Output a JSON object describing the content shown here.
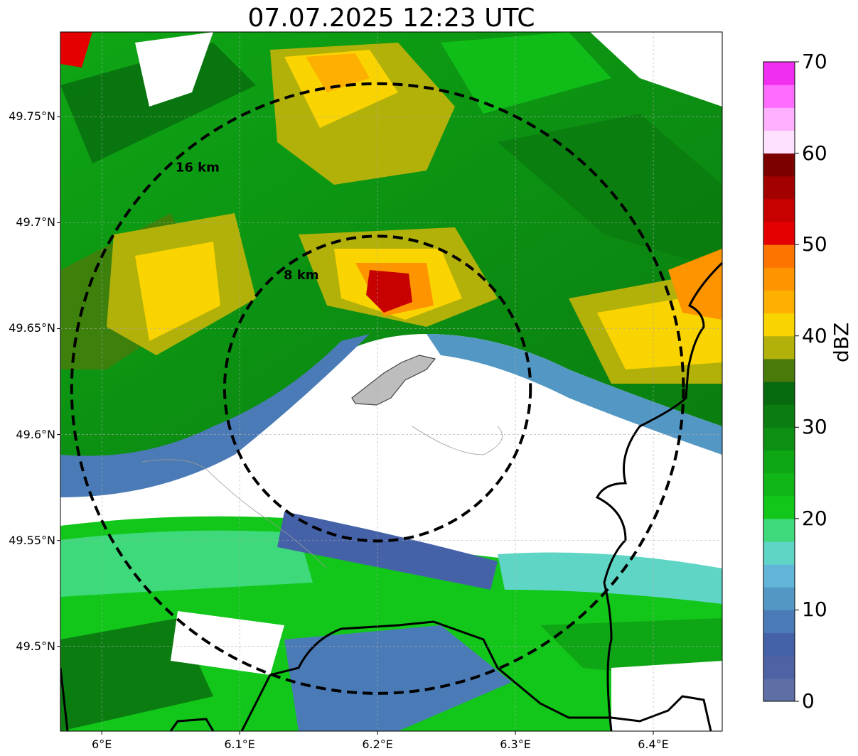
{
  "title": "07.07.2025 12:23 UTC",
  "map": {
    "lon_range": [
      5.97,
      6.45
    ],
    "lat_range": [
      49.46,
      49.79
    ],
    "center": {
      "lon": 6.2,
      "lat": 49.6217
    },
    "lon_ticks": [
      {
        "value": 6.0,
        "label": "6°E"
      },
      {
        "value": 6.1,
        "label": "6.1°E"
      },
      {
        "value": 6.2,
        "label": "6.2°E"
      },
      {
        "value": 6.3,
        "label": "6.3°E"
      },
      {
        "value": 6.4,
        "label": "6.4°E"
      }
    ],
    "lat_ticks": [
      {
        "value": 49.75,
        "label": "49.75°N"
      },
      {
        "value": 49.7,
        "label": "49.7°N"
      },
      {
        "value": 49.65,
        "label": "49.65°N"
      },
      {
        "value": 49.6,
        "label": "49.6°N"
      },
      {
        "value": 49.55,
        "label": "49.55°N"
      },
      {
        "value": 49.5,
        "label": "49.5°N"
      }
    ],
    "range_rings": [
      {
        "radius_km": 8,
        "label": "8 km"
      },
      {
        "radius_km": 16,
        "label": "16 km"
      }
    ],
    "grid": true
  },
  "colorbar": {
    "label": "dBZ",
    "min": 0,
    "max": 70,
    "ticks": [
      0,
      10,
      20,
      30,
      40,
      50,
      60,
      70
    ],
    "colors": [
      "#5e6fa6",
      "#4f62a4",
      "#4562a8",
      "#4a7bb6",
      "#5397c4",
      "#62b5d8",
      "#5fd5c5",
      "#3ed97b",
      "#12c71a",
      "#10b617",
      "#0ea614",
      "#0c8f12",
      "#0a7c10",
      "#086a0e",
      "#4a7a0a",
      "#b2b10a",
      "#f9d400",
      "#fdb000",
      "#fd9400",
      "#fd7500",
      "#e40000",
      "#c70000",
      "#a30000",
      "#7c0000",
      "#ffe0ff",
      "#ffb0ff",
      "#ff6cff",
      "#f02ef0"
    ]
  }
}
